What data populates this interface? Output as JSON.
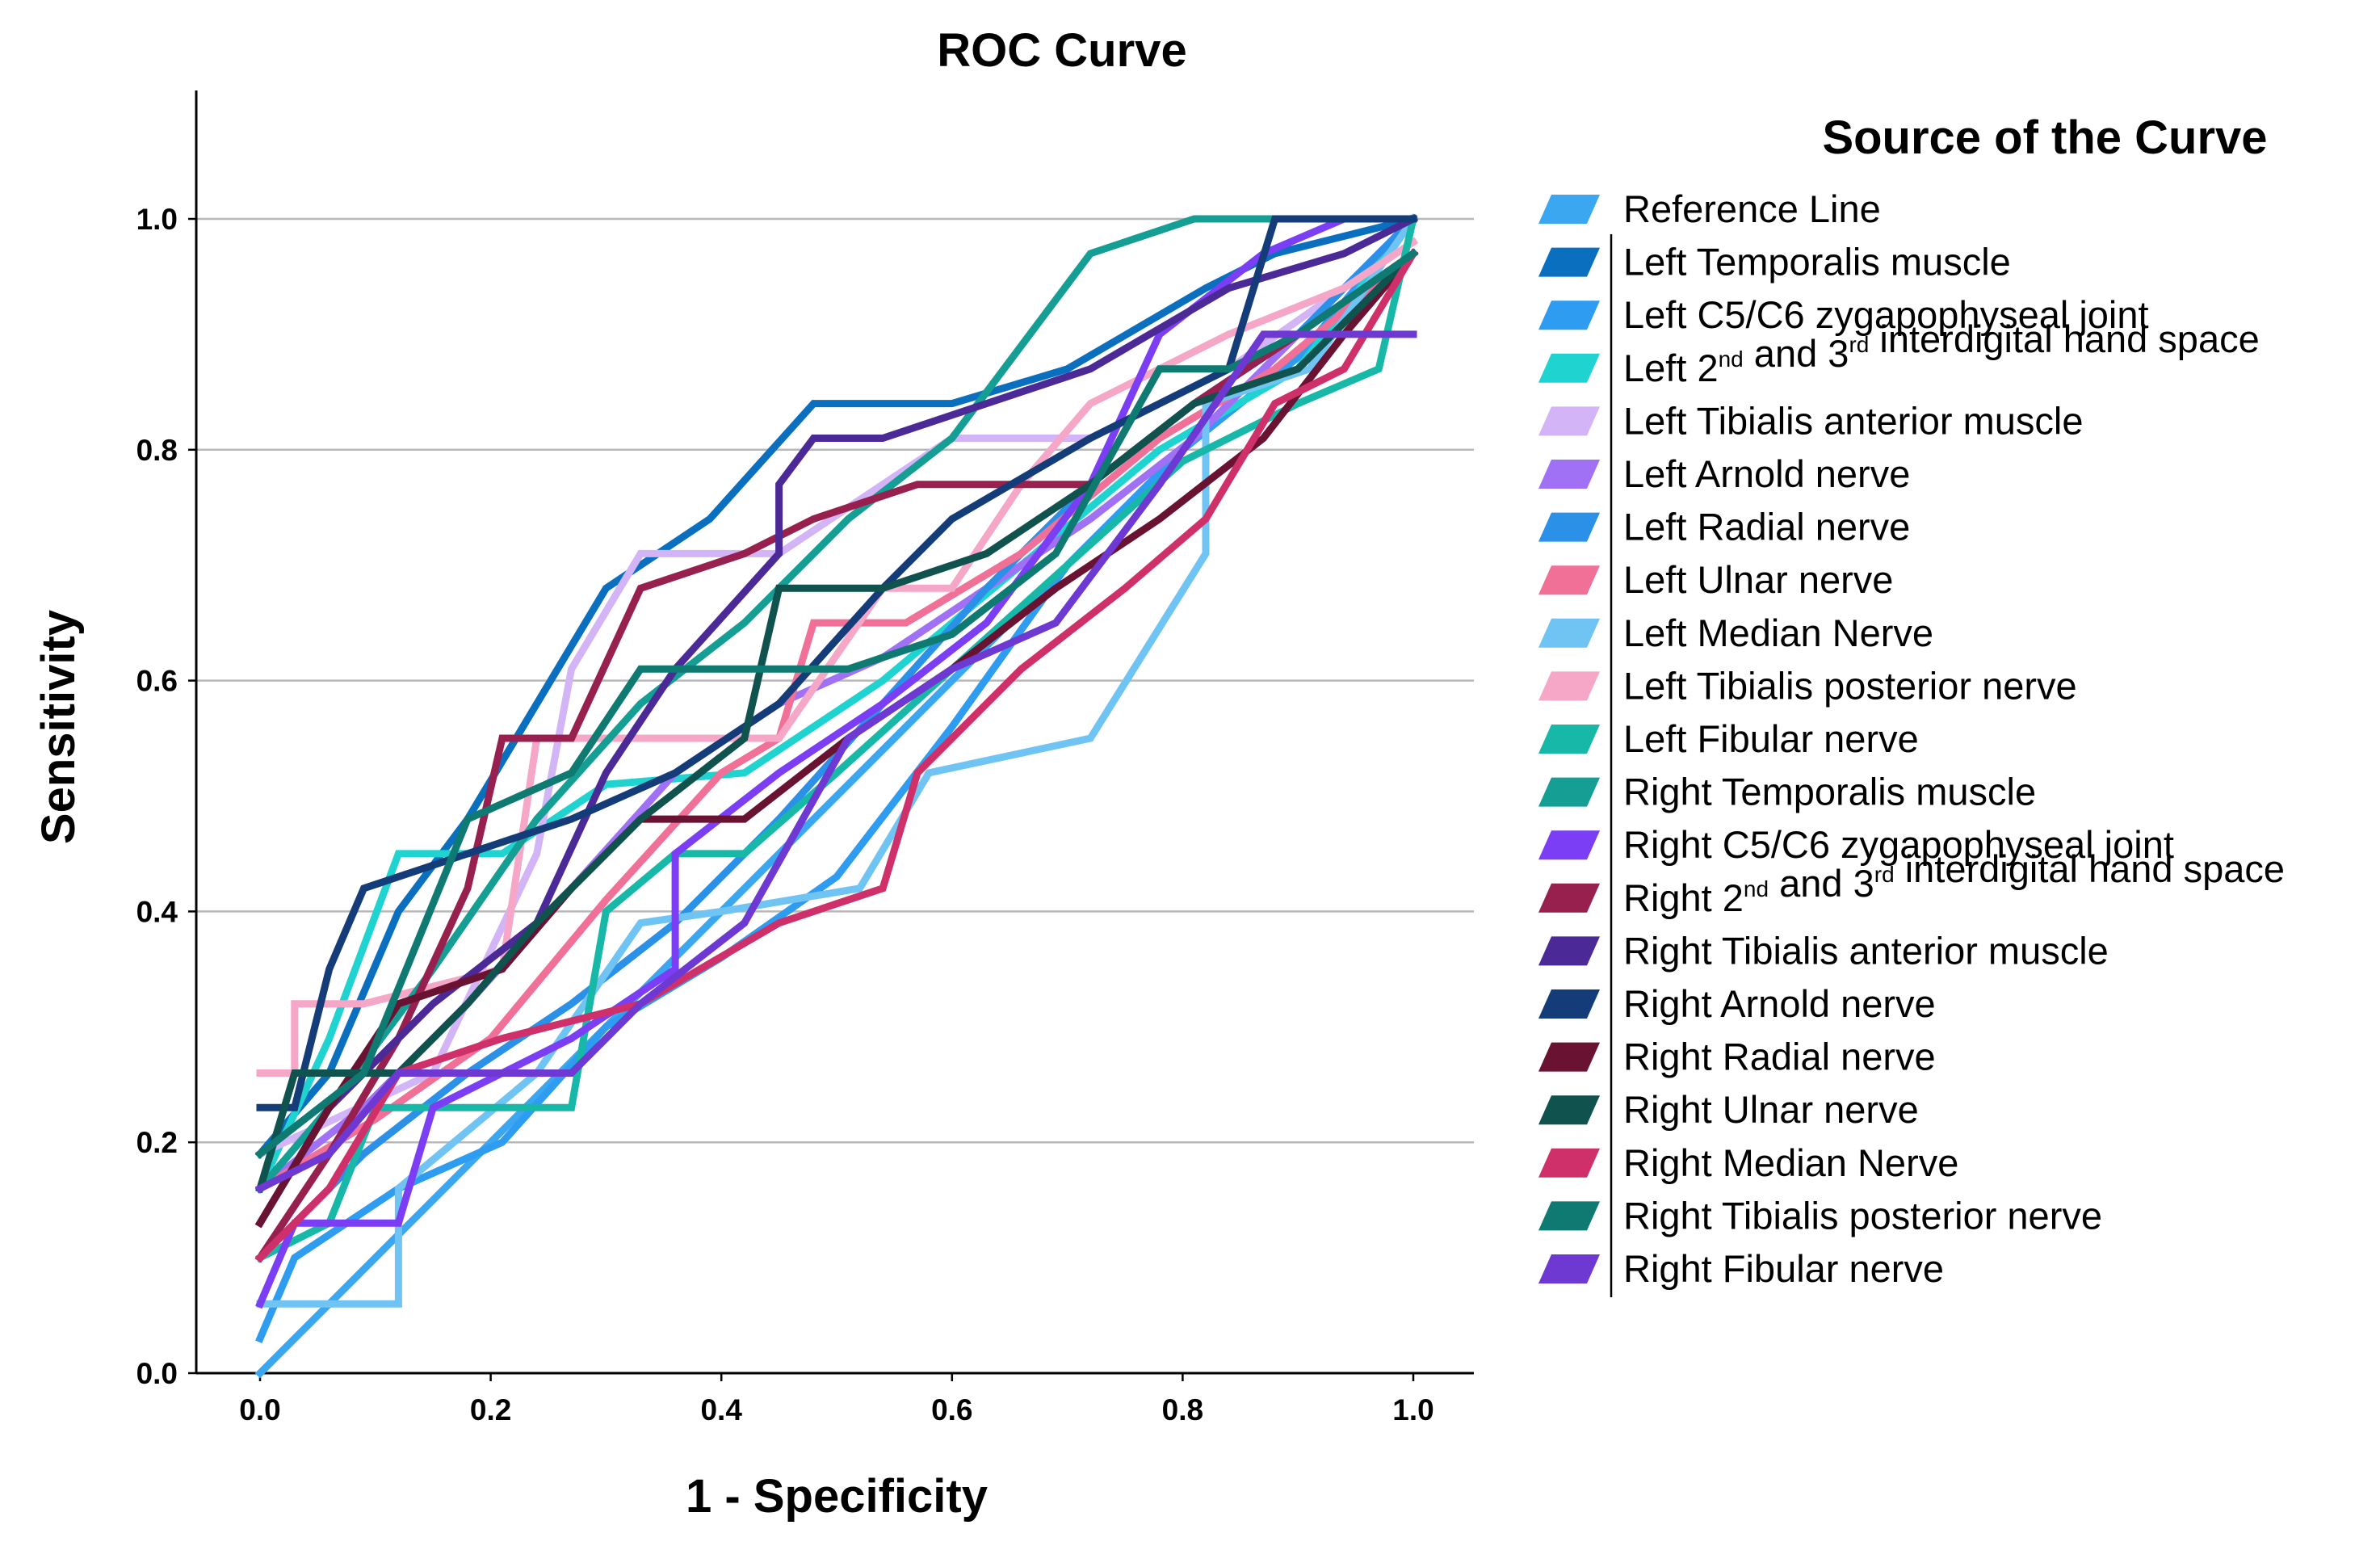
{
  "chart_data": {
    "type": "line",
    "title": "ROC Curve",
    "xlabel": "1 - Specificity",
    "ylabel": "Sensitivity",
    "xlim": [
      0,
      1
    ],
    "ylim": [
      0,
      1.1
    ],
    "xticks": [
      "0.0",
      "0.2",
      "0.4",
      "0.6",
      "0.8",
      "1.0"
    ],
    "yticks": [
      "0.0",
      "0.2",
      "0.4",
      "0.6",
      "0.8",
      "1.0"
    ],
    "grid": "horizontal",
    "legend": {
      "title": "Source of the Curve",
      "position": "right"
    },
    "series": [
      {
        "name": "Reference Line",
        "color": "#3AA7F0",
        "points": [
          [
            0,
            0
          ],
          [
            1,
            1
          ]
        ]
      },
      {
        "name": "Left Temporalis muscle",
        "color": "#0B6FC0",
        "points": [
          [
            0,
            0.19
          ],
          [
            0.06,
            0.26
          ],
          [
            0.12,
            0.4
          ],
          [
            0.18,
            0.48
          ],
          [
            0.24,
            0.58
          ],
          [
            0.3,
            0.68
          ],
          [
            0.39,
            0.74
          ],
          [
            0.48,
            0.84
          ],
          [
            0.6,
            0.84
          ],
          [
            0.7,
            0.87
          ],
          [
            0.82,
            0.94
          ],
          [
            0.88,
            0.97
          ],
          [
            1,
            1
          ]
        ]
      },
      {
        "name": "Left C5/C6 zygapophyseal joint",
        "color": "#2E9CF0",
        "points": [
          [
            0,
            0.03
          ],
          [
            0.03,
            0.1
          ],
          [
            0.12,
            0.16
          ],
          [
            0.21,
            0.2
          ],
          [
            0.3,
            0.3
          ],
          [
            0.4,
            0.36
          ],
          [
            0.5,
            0.43
          ],
          [
            0.6,
            0.56
          ],
          [
            0.7,
            0.7
          ],
          [
            0.8,
            0.8
          ],
          [
            0.9,
            0.88
          ],
          [
            1,
            1
          ]
        ]
      },
      {
        "name": "Left 2nd and 3rd interdigital hand space",
        "color": "#1FD3D0",
        "points": [
          [
            0,
            0.16
          ],
          [
            0.06,
            0.29
          ],
          [
            0.12,
            0.45
          ],
          [
            0.21,
            0.45
          ],
          [
            0.3,
            0.51
          ],
          [
            0.42,
            0.52
          ],
          [
            0.54,
            0.6
          ],
          [
            0.66,
            0.7
          ],
          [
            0.78,
            0.8
          ],
          [
            0.9,
            0.87
          ],
          [
            1,
            1
          ]
        ]
      },
      {
        "name": "Left Tibialis anterior muscle",
        "color": "#D3B4F6",
        "points": [
          [
            0,
            0.19
          ],
          [
            0.15,
            0.26
          ],
          [
            0.24,
            0.45
          ],
          [
            0.27,
            0.61
          ],
          [
            0.33,
            0.71
          ],
          [
            0.45,
            0.71
          ],
          [
            0.54,
            0.77
          ],
          [
            0.6,
            0.81
          ],
          [
            0.72,
            0.81
          ],
          [
            0.84,
            0.87
          ],
          [
            0.94,
            0.94
          ],
          [
            1,
            1
          ]
        ]
      },
      {
        "name": "Left Arnold nerve",
        "color": "#A070F5",
        "points": [
          [
            0,
            0.16
          ],
          [
            0.09,
            0.23
          ],
          [
            0.18,
            0.32
          ],
          [
            0.27,
            0.42
          ],
          [
            0.36,
            0.52
          ],
          [
            0.45,
            0.58
          ],
          [
            0.54,
            0.62
          ],
          [
            0.63,
            0.68
          ],
          [
            0.72,
            0.74
          ],
          [
            0.81,
            0.81
          ],
          [
            0.9,
            0.9
          ],
          [
            1,
            1
          ]
        ]
      },
      {
        "name": "Left Radial nerve",
        "color": "#2A90E8",
        "points": [
          [
            0,
            0.1
          ],
          [
            0.09,
            0.19
          ],
          [
            0.18,
            0.26
          ],
          [
            0.27,
            0.32
          ],
          [
            0.36,
            0.39
          ],
          [
            0.45,
            0.48
          ],
          [
            0.54,
            0.58
          ],
          [
            0.63,
            0.68
          ],
          [
            0.72,
            0.77
          ],
          [
            0.81,
            0.84
          ],
          [
            0.9,
            0.9
          ],
          [
            1,
            1
          ]
        ]
      },
      {
        "name": "Left Ulnar nerve",
        "color": "#F07098",
        "points": [
          [
            0,
            0.16
          ],
          [
            0.1,
            0.22
          ],
          [
            0.2,
            0.29
          ],
          [
            0.3,
            0.41
          ],
          [
            0.4,
            0.52
          ],
          [
            0.45,
            0.55
          ],
          [
            0.48,
            0.65
          ],
          [
            0.56,
            0.65
          ],
          [
            0.66,
            0.71
          ],
          [
            0.78,
            0.81
          ],
          [
            0.88,
            0.87
          ],
          [
            1,
            0.97
          ]
        ]
      },
      {
        "name": "Left Median Nerve",
        "color": "#70C4F4",
        "points": [
          [
            0,
            0.06
          ],
          [
            0.12,
            0.06
          ],
          [
            0.12,
            0.16
          ],
          [
            0.24,
            0.26
          ],
          [
            0.33,
            0.39
          ],
          [
            0.4,
            0.4
          ],
          [
            0.52,
            0.42
          ],
          [
            0.58,
            0.52
          ],
          [
            0.72,
            0.55
          ],
          [
            0.82,
            0.71
          ],
          [
            0.82,
            0.84
          ],
          [
            0.91,
            0.87
          ],
          [
            1,
            1
          ]
        ]
      },
      {
        "name": "Left Tibialis posterior nerve",
        "color": "#F6A6C6",
        "points": [
          [
            0,
            0.26
          ],
          [
            0.03,
            0.26
          ],
          [
            0.03,
            0.32
          ],
          [
            0.09,
            0.32
          ],
          [
            0.21,
            0.35
          ],
          [
            0.24,
            0.55
          ],
          [
            0.33,
            0.55
          ],
          [
            0.45,
            0.55
          ],
          [
            0.54,
            0.68
          ],
          [
            0.6,
            0.68
          ],
          [
            0.66,
            0.77
          ],
          [
            0.72,
            0.84
          ],
          [
            0.84,
            0.9
          ],
          [
            0.94,
            0.94
          ],
          [
            1,
            0.98
          ]
        ]
      },
      {
        "name": "Left Fibular nerve",
        "color": "#18B8A8",
        "points": [
          [
            0,
            0.1
          ],
          [
            0.06,
            0.13
          ],
          [
            0.1,
            0.23
          ],
          [
            0.2,
            0.23
          ],
          [
            0.27,
            0.23
          ],
          [
            0.3,
            0.4
          ],
          [
            0.36,
            0.45
          ],
          [
            0.42,
            0.45
          ],
          [
            0.5,
            0.52
          ],
          [
            0.6,
            0.61
          ],
          [
            0.7,
            0.7
          ],
          [
            0.8,
            0.79
          ],
          [
            0.9,
            0.84
          ],
          [
            0.97,
            0.87
          ],
          [
            1,
            1
          ]
        ]
      },
      {
        "name": "Right Temporalis muscle",
        "color": "#149E94",
        "points": [
          [
            0,
            0.16
          ],
          [
            0.06,
            0.23
          ],
          [
            0.15,
            0.35
          ],
          [
            0.24,
            0.48
          ],
          [
            0.33,
            0.58
          ],
          [
            0.42,
            0.65
          ],
          [
            0.51,
            0.74
          ],
          [
            0.6,
            0.81
          ],
          [
            0.72,
            0.97
          ],
          [
            0.81,
            1
          ],
          [
            0.9,
            1
          ],
          [
            1,
            1
          ]
        ]
      },
      {
        "name": "Right C5/C6 zygapophyseal joint",
        "color": "#7B3EF5",
        "points": [
          [
            0,
            0.06
          ],
          [
            0.03,
            0.13
          ],
          [
            0.12,
            0.13
          ],
          [
            0.15,
            0.23
          ],
          [
            0.27,
            0.29
          ],
          [
            0.36,
            0.35
          ],
          [
            0.36,
            0.45
          ],
          [
            0.45,
            0.52
          ],
          [
            0.54,
            0.58
          ],
          [
            0.63,
            0.65
          ],
          [
            0.72,
            0.77
          ],
          [
            0.78,
            0.9
          ],
          [
            0.87,
            0.97
          ],
          [
            0.94,
            1
          ],
          [
            1,
            1
          ]
        ]
      },
      {
        "name": "Right 2nd and 3rd interdigital hand space",
        "color": "#98204E",
        "points": [
          [
            0,
            0.1
          ],
          [
            0.06,
            0.19
          ],
          [
            0.12,
            0.29
          ],
          [
            0.18,
            0.42
          ],
          [
            0.21,
            0.55
          ],
          [
            0.27,
            0.55
          ],
          [
            0.33,
            0.68
          ],
          [
            0.42,
            0.71
          ],
          [
            0.48,
            0.74
          ],
          [
            0.57,
            0.77
          ],
          [
            0.72,
            0.77
          ],
          [
            0.81,
            0.84
          ],
          [
            0.9,
            0.9
          ],
          [
            1,
            0.97
          ]
        ]
      },
      {
        "name": "Right Tibialis anterior muscle",
        "color": "#4B2A98",
        "points": [
          [
            0,
            0.13
          ],
          [
            0.06,
            0.23
          ],
          [
            0.15,
            0.32
          ],
          [
            0.24,
            0.39
          ],
          [
            0.3,
            0.52
          ],
          [
            0.36,
            0.61
          ],
          [
            0.45,
            0.71
          ],
          [
            0.45,
            0.77
          ],
          [
            0.48,
            0.81
          ],
          [
            0.54,
            0.81
          ],
          [
            0.63,
            0.84
          ],
          [
            0.72,
            0.87
          ],
          [
            0.84,
            0.94
          ],
          [
            0.94,
            0.97
          ],
          [
            1,
            1
          ]
        ]
      },
      {
        "name": "Right Arnold nerve",
        "color": "#143C78",
        "points": [
          [
            0,
            0.23
          ],
          [
            0.03,
            0.23
          ],
          [
            0.06,
            0.35
          ],
          [
            0.09,
            0.42
          ],
          [
            0.18,
            0.45
          ],
          [
            0.27,
            0.48
          ],
          [
            0.36,
            0.52
          ],
          [
            0.45,
            0.58
          ],
          [
            0.54,
            0.68
          ],
          [
            0.6,
            0.74
          ],
          [
            0.72,
            0.81
          ],
          [
            0.84,
            0.87
          ],
          [
            0.88,
            1
          ],
          [
            0.94,
            1
          ],
          [
            1,
            1
          ]
        ]
      },
      {
        "name": "Right Radial nerve",
        "color": "#6A1232",
        "points": [
          [
            0,
            0.13
          ],
          [
            0.06,
            0.23
          ],
          [
            0.12,
            0.32
          ],
          [
            0.21,
            0.35
          ],
          [
            0.27,
            0.42
          ],
          [
            0.33,
            0.48
          ],
          [
            0.42,
            0.48
          ],
          [
            0.51,
            0.55
          ],
          [
            0.6,
            0.61
          ],
          [
            0.69,
            0.68
          ],
          [
            0.78,
            0.74
          ],
          [
            0.87,
            0.81
          ],
          [
            0.94,
            0.9
          ],
          [
            1,
            0.97
          ]
        ]
      },
      {
        "name": "Right Ulnar nerve",
        "color": "#10524E",
        "points": [
          [
            0,
            0.16
          ],
          [
            0.03,
            0.26
          ],
          [
            0.12,
            0.26
          ],
          [
            0.18,
            0.32
          ],
          [
            0.24,
            0.39
          ],
          [
            0.33,
            0.48
          ],
          [
            0.42,
            0.55
          ],
          [
            0.45,
            0.68
          ],
          [
            0.54,
            0.68
          ],
          [
            0.63,
            0.71
          ],
          [
            0.72,
            0.77
          ],
          [
            0.81,
            0.84
          ],
          [
            0.9,
            0.87
          ],
          [
            1,
            0.97
          ]
        ]
      },
      {
        "name": "Right Median Nerve",
        "color": "#D0306A",
        "points": [
          [
            0,
            0.1
          ],
          [
            0.06,
            0.16
          ],
          [
            0.12,
            0.26
          ],
          [
            0.21,
            0.29
          ],
          [
            0.33,
            0.32
          ],
          [
            0.45,
            0.39
          ],
          [
            0.54,
            0.42
          ],
          [
            0.57,
            0.52
          ],
          [
            0.66,
            0.61
          ],
          [
            0.75,
            0.68
          ],
          [
            0.82,
            0.74
          ],
          [
            0.88,
            0.84
          ],
          [
            0.94,
            0.87
          ],
          [
            1,
            0.97
          ]
        ]
      },
      {
        "name": "Right Tibialis posterior nerve",
        "color": "#0E7A72",
        "points": [
          [
            0,
            0.19
          ],
          [
            0.09,
            0.26
          ],
          [
            0.18,
            0.48
          ],
          [
            0.27,
            0.52
          ],
          [
            0.33,
            0.61
          ],
          [
            0.42,
            0.61
          ],
          [
            0.51,
            0.61
          ],
          [
            0.6,
            0.64
          ],
          [
            0.69,
            0.71
          ],
          [
            0.78,
            0.87
          ],
          [
            0.84,
            0.87
          ],
          [
            0.9,
            0.9
          ],
          [
            1,
            0.97
          ]
        ]
      },
      {
        "name": "Right Fibular nerve",
        "color": "#6E38D2",
        "points": [
          [
            0,
            0.16
          ],
          [
            0.06,
            0.19
          ],
          [
            0.12,
            0.26
          ],
          [
            0.21,
            0.26
          ],
          [
            0.27,
            0.26
          ],
          [
            0.33,
            0.32
          ],
          [
            0.42,
            0.39
          ],
          [
            0.51,
            0.55
          ],
          [
            0.6,
            0.61
          ],
          [
            0.69,
            0.65
          ],
          [
            0.78,
            0.77
          ],
          [
            0.87,
            0.9
          ],
          [
            0.94,
            0.9
          ],
          [
            1,
            0.9
          ]
        ]
      }
    ]
  }
}
